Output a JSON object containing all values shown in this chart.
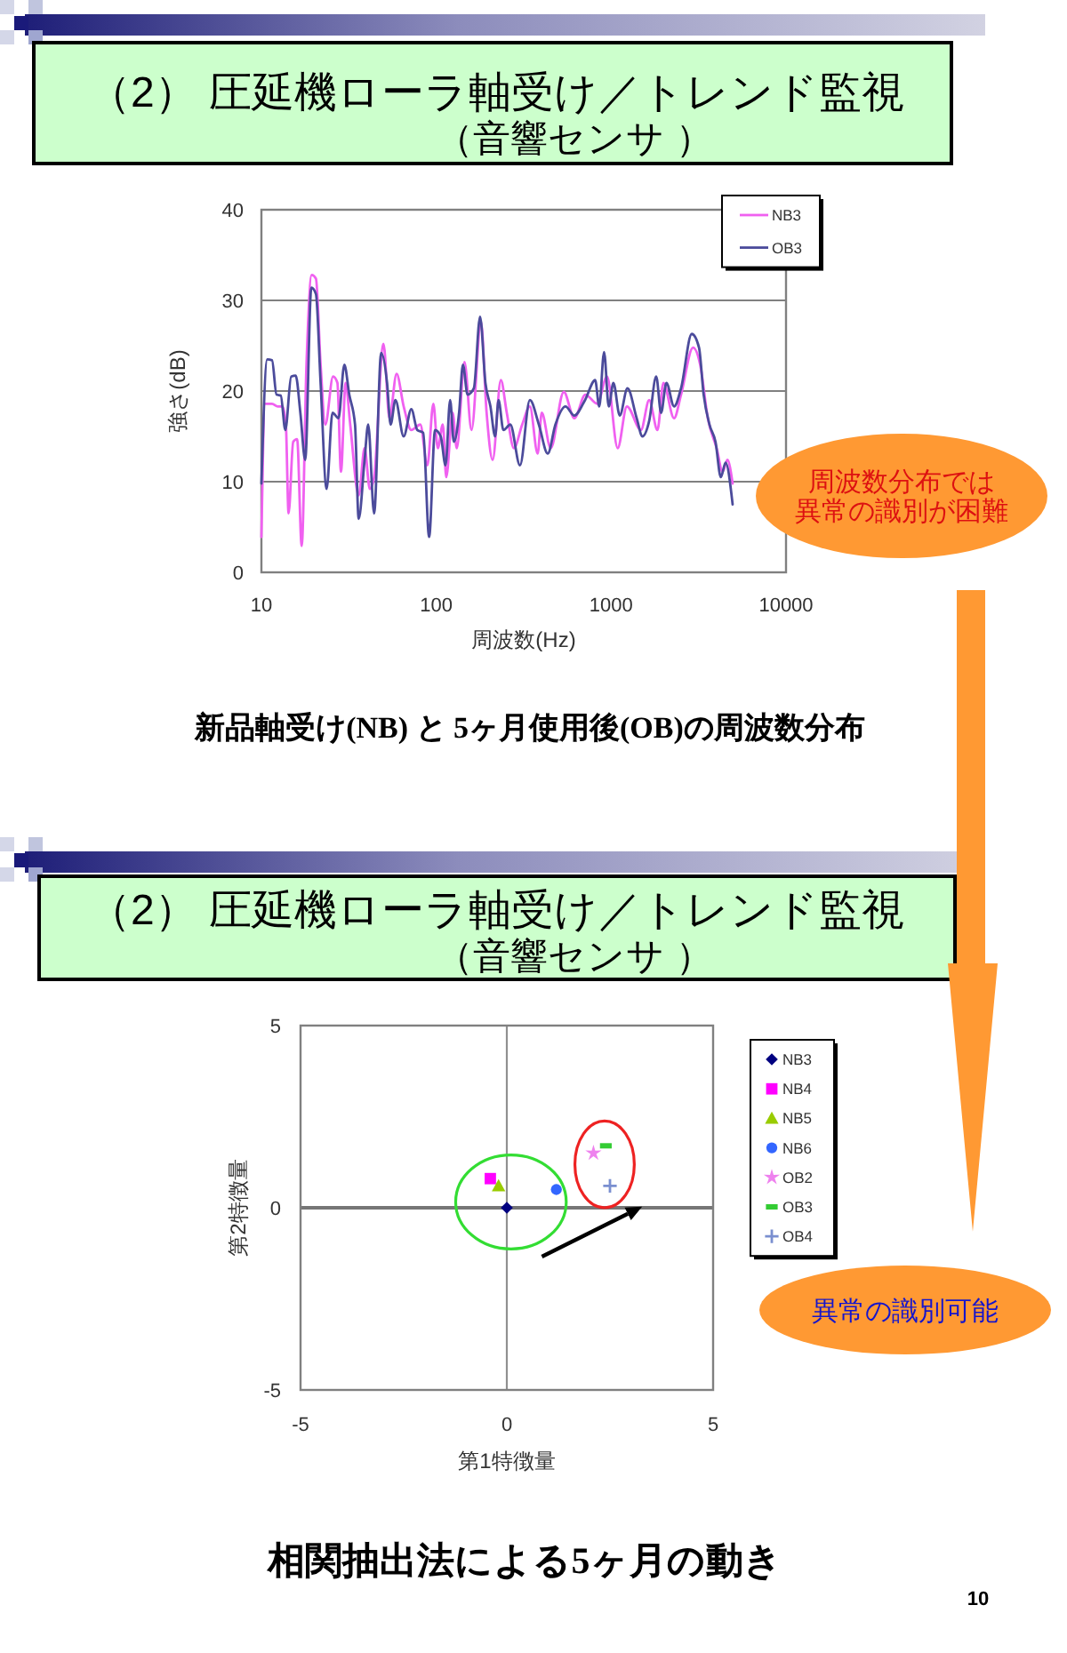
{
  "chart_data": [
    {
      "type": "line",
      "title": "（2） 圧延機ローラ軸受け／トレンド監視",
      "subtitle": "（音響センサ ）",
      "xlabel": "周波数(Hz)",
      "ylabel": "強さ(dB)",
      "log": "x",
      "xlim": [
        10,
        10000
      ],
      "xticks": [
        10,
        100,
        1000,
        10000
      ],
      "ylim": [
        0,
        40
      ],
      "yticks": [
        0,
        10,
        20,
        30,
        40
      ],
      "grid": "y",
      "legend": "top right",
      "series": [
        {
          "name": "NB3",
          "color": "#f060f0",
          "x": [
            10,
            10.5,
            11.5,
            12.4,
            13.2,
            13.8,
            14.3,
            15.2,
            16,
            17,
            18.1,
            19.4,
            20.5,
            21.8,
            23.2,
            25.7,
            27.2,
            28.5,
            30.3,
            32.2,
            36,
            38.9,
            41.7,
            44.1,
            49.9,
            54,
            59.3,
            65.1,
            72,
            81,
            88.9,
            96.2,
            102,
            109,
            114,
            124,
            131,
            145,
            159,
            180,
            194,
            210,
            234,
            253,
            278,
            310,
            343,
            380,
            401,
            451,
            536,
            616,
            712,
            833,
            947,
            1090,
            1230,
            1480,
            1650,
            1840,
            1990,
            2290,
            2510,
            2940,
            3230,
            3570,
            4010,
            4340,
            4620,
            4950
          ],
          "values": [
            3.9,
            18.6,
            18.6,
            18.3,
            18.3,
            16.3,
            6.5,
            14.4,
            14.7,
            2.9,
            22.9,
            32.8,
            32.4,
            22.9,
            16.3,
            21.6,
            20.9,
            11.1,
            20.9,
            16.3,
            8.5,
            13.7,
            9.2,
            10.5,
            25.2,
            17,
            21.9,
            18.3,
            15.7,
            16.3,
            11.8,
            18.6,
            13.7,
            16.3,
            10.5,
            17.6,
            13.7,
            23.2,
            15.7,
            27.6,
            17.6,
            12.4,
            21.2,
            17.6,
            13.7,
            16.3,
            18.3,
            13.1,
            17.6,
            13.7,
            19.9,
            17,
            19.6,
            18.6,
            21.6,
            13.7,
            18.3,
            15.7,
            19,
            15.7,
            20.9,
            17,
            19.6,
            24.8,
            22.9,
            17,
            13.7,
            11.1,
            12.4,
            9.8
          ]
        },
        {
          "name": "OB3",
          "color": "#4b4b9b",
          "x": [
            10,
            10.8,
            11.5,
            12.2,
            12.9,
            13.7,
            14.8,
            15.7,
            16.7,
            17.8,
            19.3,
            20.5,
            21.8,
            23.6,
            25.5,
            27.6,
            29.8,
            31.8,
            34.3,
            36,
            38.9,
            40.8,
            44.1,
            48.4,
            52.3,
            54.8,
            58.4,
            65.1,
            72,
            77.9,
            84.2,
            91,
            98.4,
            106,
            113,
            120,
            126,
            135,
            142,
            151,
            164,
            178,
            191,
            204,
            217,
            227,
            242,
            265,
            301,
            343,
            386,
            434,
            480,
            548,
            616,
            709,
            810,
            855,
            911,
            969,
            1030,
            1120,
            1240,
            1400,
            1510,
            1650,
            1810,
            1930,
            2070,
            2290,
            2510,
            2890,
            3180,
            3380,
            3650,
            3950,
            4240,
            4510,
            4950
          ],
          "values": [
            9.8,
            23.5,
            23.4,
            19.6,
            19.5,
            15.7,
            21.6,
            21.7,
            17.6,
            12.4,
            31.4,
            30.7,
            20.9,
            9.2,
            17.6,
            17,
            22.9,
            19.6,
            16.3,
            5.9,
            12.4,
            16.3,
            6.5,
            24.2,
            20.9,
            16.3,
            19,
            15,
            18,
            15.7,
            15.4,
            3.9,
            15.7,
            15,
            11.8,
            19,
            14.4,
            17.6,
            22.9,
            19.6,
            20.3,
            28.2,
            20.9,
            18.3,
            15,
            19,
            15.7,
            16.3,
            11.8,
            19,
            16.3,
            13.1,
            16.3,
            18.3,
            17.3,
            19,
            21.2,
            18.3,
            24.3,
            18.3,
            20.9,
            17.3,
            20.3,
            17,
            15,
            16.7,
            21.6,
            17.6,
            20.9,
            18.3,
            20.3,
            26.3,
            24.8,
            19.6,
            16.3,
            14.4,
            10.5,
            12.1,
            7.5
          ]
        }
      ],
      "annotations": [
        "新品軸受け(NB) と 5ヶ月使用後(OB)の周波数分布",
        "周波数分布では異常の識別が困難"
      ]
    },
    {
      "type": "scatter",
      "title": "（2） 圧延機ローラ軸受け／トレンド監視",
      "subtitle": "（音響センサ ）",
      "xlabel": "第1特徴量",
      "ylabel": "第2特徴量",
      "xlim": [
        -5,
        5
      ],
      "xticks": [
        -5,
        0,
        5
      ],
      "ylim": [
        -5,
        5
      ],
      "yticks": [
        -5,
        0,
        5
      ],
      "legend": "right",
      "ref_lines": [
        {
          "axis": "x",
          "value": 0,
          "color": "#909090"
        },
        {
          "axis": "y",
          "value": 0,
          "color": "#767676"
        }
      ],
      "series": [
        {
          "name": "NB3",
          "color": "#000080",
          "marker": "diamond",
          "x": [
            0
          ],
          "values": [
            0
          ]
        },
        {
          "name": "NB4",
          "color": "#ff00ff",
          "marker": "square",
          "x": [
            -0.4
          ],
          "values": [
            0.8
          ]
        },
        {
          "name": "NB5",
          "color": "#99cc00",
          "marker": "triangle",
          "x": [
            -0.2
          ],
          "values": [
            0.6
          ]
        },
        {
          "name": "NB6",
          "color": "#3366ff",
          "marker": "circle",
          "x": [
            1.2
          ],
          "values": [
            0.5
          ]
        },
        {
          "name": "OB2",
          "color": "#ee82ee",
          "marker": "star",
          "x": [
            2.1
          ],
          "values": [
            1.5
          ]
        },
        {
          "name": "OB3",
          "color": "#33cc33",
          "x": [
            2.4
          ],
          "values": [
            1.7
          ]
        },
        {
          "name": "OB4",
          "color": "#7a8fd0",
          "marker": "cross",
          "x": [
            2.5
          ],
          "values": [
            0.6
          ]
        }
      ],
      "annotations": [
        "相関抽出法による5ヶ月の動き",
        "異常の識別可能",
        "10"
      ]
    }
  ]
}
